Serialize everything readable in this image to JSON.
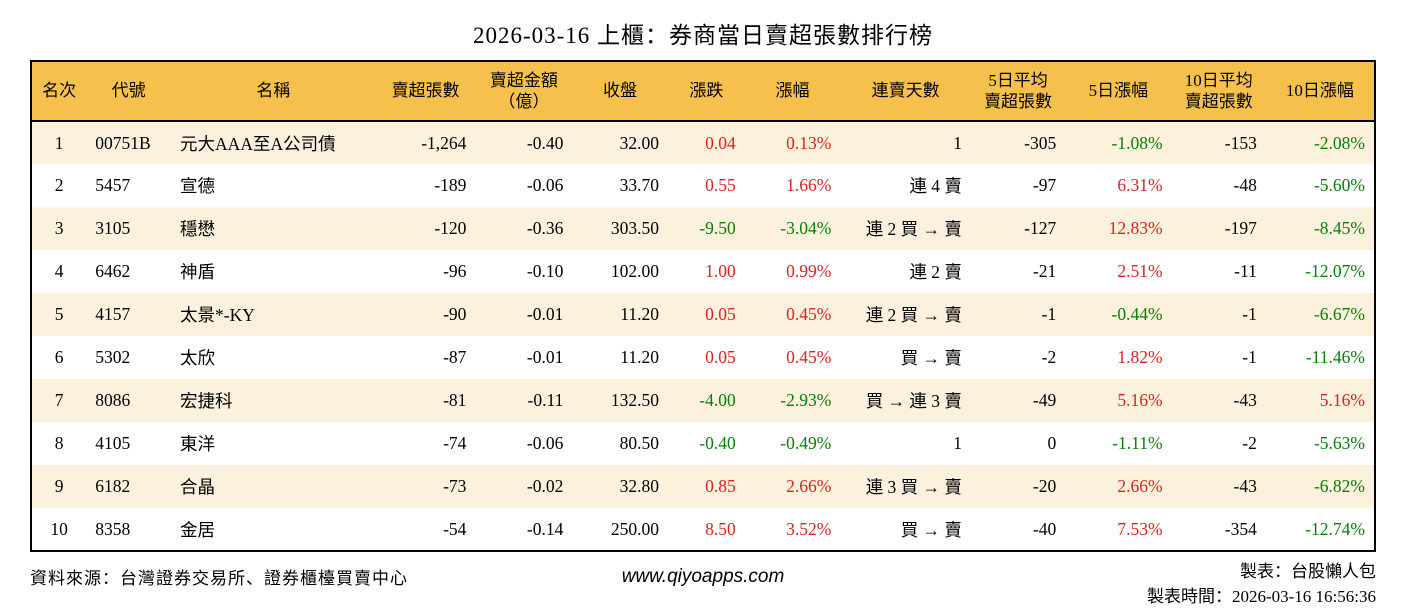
{
  "title": "2026-03-16 上櫃：券商當日賣超張數排行榜",
  "colors": {
    "header_bg": "#F6C04C",
    "row_alt_bg": "#FBF1DC",
    "row_bg": "#FFFFFF",
    "up_red": "#E02020",
    "down_green": "#078007",
    "border": "#000000"
  },
  "table": {
    "columns": [
      {
        "key": "rank",
        "label": "名次",
        "align": "center"
      },
      {
        "key": "code",
        "label": "代號",
        "align": "left"
      },
      {
        "key": "name",
        "label": "名稱",
        "align": "left"
      },
      {
        "key": "net_sell",
        "label": "賣超張數",
        "align": "right"
      },
      {
        "key": "amount",
        "label": "賣超金額\n（億）",
        "align": "right"
      },
      {
        "key": "close",
        "label": "收盤",
        "align": "right"
      },
      {
        "key": "change",
        "label": "漲跌",
        "align": "right"
      },
      {
        "key": "change_pct",
        "label": "漲幅",
        "align": "right"
      },
      {
        "key": "streak",
        "label": "連賣天數",
        "align": "right"
      },
      {
        "key": "avg5",
        "label": "5日平均\n賣超張數",
        "align": "right"
      },
      {
        "key": "pct5",
        "label": "5日漲幅",
        "align": "right"
      },
      {
        "key": "avg10",
        "label": "10日平均\n賣超張數",
        "align": "right"
      },
      {
        "key": "pct10",
        "label": "10日漲幅",
        "align": "right"
      }
    ],
    "rows": [
      {
        "rank": "1",
        "code": "00751B",
        "name": "元大AAA至A公司債",
        "net_sell": "-1,264",
        "amount": "-0.40",
        "close": "32.00",
        "change": {
          "text": "0.04",
          "color": "up"
        },
        "change_pct": {
          "text": "0.13%",
          "color": "up"
        },
        "streak": "1",
        "avg5": "-305",
        "pct5": {
          "text": "-1.08%",
          "color": "down"
        },
        "avg10": "-153",
        "pct10": {
          "text": "-2.08%",
          "color": "down"
        }
      },
      {
        "rank": "2",
        "code": "5457",
        "name": "宣德",
        "net_sell": "-189",
        "amount": "-0.06",
        "close": "33.70",
        "change": {
          "text": "0.55",
          "color": "up"
        },
        "change_pct": {
          "text": "1.66%",
          "color": "up"
        },
        "streak": "連 4 賣",
        "avg5": "-97",
        "pct5": {
          "text": "6.31%",
          "color": "up"
        },
        "avg10": "-48",
        "pct10": {
          "text": "-5.60%",
          "color": "down"
        }
      },
      {
        "rank": "3",
        "code": "3105",
        "name": "穩懋",
        "net_sell": "-120",
        "amount": "-0.36",
        "close": "303.50",
        "change": {
          "text": "-9.50",
          "color": "down"
        },
        "change_pct": {
          "text": "-3.04%",
          "color": "down"
        },
        "streak": "連 2 買 → 賣",
        "avg5": "-127",
        "pct5": {
          "text": "12.83%",
          "color": "up"
        },
        "avg10": "-197",
        "pct10": {
          "text": "-8.45%",
          "color": "down"
        }
      },
      {
        "rank": "4",
        "code": "6462",
        "name": "神盾",
        "net_sell": "-96",
        "amount": "-0.10",
        "close": "102.00",
        "change": {
          "text": "1.00",
          "color": "up"
        },
        "change_pct": {
          "text": "0.99%",
          "color": "up"
        },
        "streak": "連 2 賣",
        "avg5": "-21",
        "pct5": {
          "text": "2.51%",
          "color": "up"
        },
        "avg10": "-11",
        "pct10": {
          "text": "-12.07%",
          "color": "down"
        }
      },
      {
        "rank": "5",
        "code": "4157",
        "name": "太景*-KY",
        "net_sell": "-90",
        "amount": "-0.01",
        "close": "11.20",
        "change": {
          "text": "0.05",
          "color": "up"
        },
        "change_pct": {
          "text": "0.45%",
          "color": "up"
        },
        "streak": "連 2 買 → 賣",
        "avg5": "-1",
        "pct5": {
          "text": "-0.44%",
          "color": "down"
        },
        "avg10": "-1",
        "pct10": {
          "text": "-6.67%",
          "color": "down"
        }
      },
      {
        "rank": "6",
        "code": "5302",
        "name": "太欣",
        "net_sell": "-87",
        "amount": "-0.01",
        "close": "11.20",
        "change": {
          "text": "0.05",
          "color": "up"
        },
        "change_pct": {
          "text": "0.45%",
          "color": "up"
        },
        "streak": "買 → 賣",
        "avg5": "-2",
        "pct5": {
          "text": "1.82%",
          "color": "up"
        },
        "avg10": "-1",
        "pct10": {
          "text": "-11.46%",
          "color": "down"
        }
      },
      {
        "rank": "7",
        "code": "8086",
        "name": "宏捷科",
        "net_sell": "-81",
        "amount": "-0.11",
        "close": "132.50",
        "change": {
          "text": "-4.00",
          "color": "down"
        },
        "change_pct": {
          "text": "-2.93%",
          "color": "down"
        },
        "streak": "買 → 連 3 賣",
        "avg5": "-49",
        "pct5": {
          "text": "5.16%",
          "color": "up"
        },
        "avg10": "-43",
        "pct10": {
          "text": "5.16%",
          "color": "up"
        }
      },
      {
        "rank": "8",
        "code": "4105",
        "name": "東洋",
        "net_sell": "-74",
        "amount": "-0.06",
        "close": "80.50",
        "change": {
          "text": "-0.40",
          "color": "down"
        },
        "change_pct": {
          "text": "-0.49%",
          "color": "down"
        },
        "streak": "1",
        "avg5": "0",
        "pct5": {
          "text": "-1.11%",
          "color": "down"
        },
        "avg10": "-2",
        "pct10": {
          "text": "-5.63%",
          "color": "down"
        }
      },
      {
        "rank": "9",
        "code": "6182",
        "name": "合晶",
        "net_sell": "-73",
        "amount": "-0.02",
        "close": "32.80",
        "change": {
          "text": "0.85",
          "color": "up"
        },
        "change_pct": {
          "text": "2.66%",
          "color": "up"
        },
        "streak": "連 3 買 → 賣",
        "avg5": "-20",
        "pct5": {
          "text": "2.66%",
          "color": "up"
        },
        "avg10": "-43",
        "pct10": {
          "text": "-6.82%",
          "color": "down"
        }
      },
      {
        "rank": "10",
        "code": "8358",
        "name": "金居",
        "net_sell": "-54",
        "amount": "-0.14",
        "close": "250.00",
        "change": {
          "text": "8.50",
          "color": "up"
        },
        "change_pct": {
          "text": "3.52%",
          "color": "up"
        },
        "streak": "買 → 賣",
        "avg5": "-40",
        "pct5": {
          "text": "7.53%",
          "color": "up"
        },
        "avg10": "-354",
        "pct10": {
          "text": "-12.74%",
          "color": "down"
        }
      }
    ]
  },
  "footer": {
    "source": "資料來源：台灣證券交易所、證券櫃檯買賣中心",
    "website": "www.qiyoapps.com",
    "maker": "製表：台股懶人包",
    "made_time": "製表時間：2026-03-16 16:56:36"
  }
}
